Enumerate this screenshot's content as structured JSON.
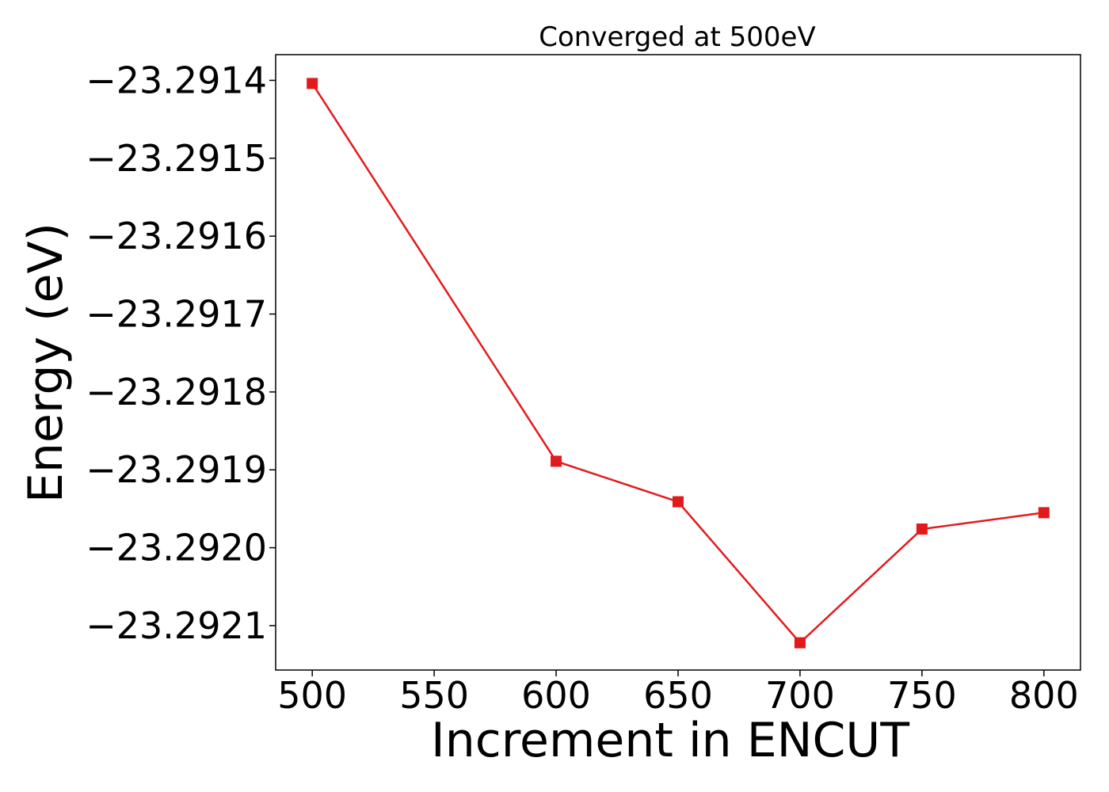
{
  "chart_data": {
    "type": "line",
    "title": "Converged at 500eV",
    "xlabel": "Increment in ENCUT",
    "ylabel": "Energy (eV)",
    "x": [
      500,
      600,
      650,
      700,
      750,
      800
    ],
    "series": [
      {
        "values": [
          -23.291404,
          -23.291889,
          -23.291941,
          -23.292122,
          -23.291976,
          -23.291955
        ],
        "color": "#e31a1c",
        "marker": "square"
      }
    ],
    "xlim": [
      485,
      815
    ],
    "ylim": [
      -23.292157,
      -23.291367
    ],
    "xticks": [
      500,
      550,
      600,
      650,
      700,
      750,
      800
    ],
    "xtick_labels": [
      "500",
      "550",
      "600",
      "650",
      "700",
      "750",
      "800"
    ],
    "yticks": [
      -23.2914,
      -23.2915,
      -23.2916,
      -23.2917,
      -23.2918,
      -23.2919,
      -23.292,
      -23.2921
    ],
    "ytick_labels": [
      "−23.2914",
      "−23.2915",
      "−23.2916",
      "−23.2917",
      "−23.2918",
      "−23.2919",
      "−23.2920",
      "−23.2921"
    ],
    "grid": false,
    "legend": false
  }
}
